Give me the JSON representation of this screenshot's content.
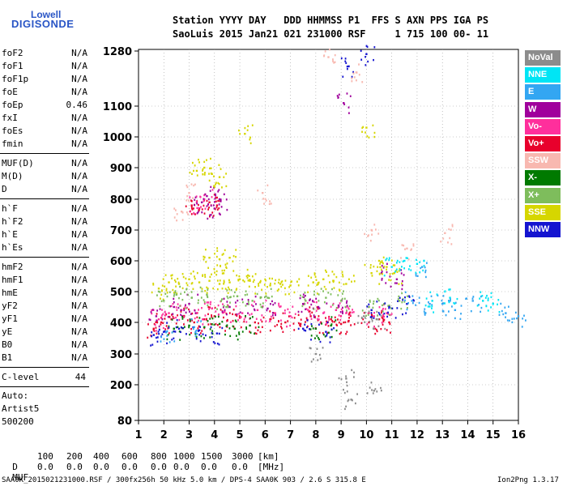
{
  "logo": {
    "line1": "Lowell",
    "line2": "DIGISONDE"
  },
  "header": {
    "row1": "Station YYYY DAY   DDD HHMMSS P1  FFS S AXN PPS IGA PS",
    "row2": "SaoLuis 2015 Jan21 021 231000 RSF     1 715 100 00- 11"
  },
  "params": {
    "group1": [
      {
        "k": "foF2",
        "v": "N/A"
      },
      {
        "k": "foF1",
        "v": "N/A"
      },
      {
        "k": "foF1p",
        "v": "N/A"
      },
      {
        "k": "foE",
        "v": "N/A"
      },
      {
        "k": "foEp",
        "v": "0.46"
      },
      {
        "k": "fxI",
        "v": "N/A"
      },
      {
        "k": "foEs",
        "v": "N/A"
      },
      {
        "k": "fmin",
        "v": "N/A"
      }
    ],
    "group2": [
      {
        "k": "MUF(D)",
        "v": "N/A"
      },
      {
        "k": "M(D)",
        "v": "N/A"
      },
      {
        "k": "D",
        "v": "N/A"
      }
    ],
    "group3": [
      {
        "k": "h`F",
        "v": "N/A"
      },
      {
        "k": "h`F2",
        "v": "N/A"
      },
      {
        "k": "h`E",
        "v": "N/A"
      },
      {
        "k": "h`Es",
        "v": "N/A"
      }
    ],
    "group4": [
      {
        "k": "hmF2",
        "v": "N/A"
      },
      {
        "k": "hmF1",
        "v": "N/A"
      },
      {
        "k": "hmE",
        "v": "N/A"
      },
      {
        "k": "yF2",
        "v": "N/A"
      },
      {
        "k": "yF1",
        "v": "N/A"
      },
      {
        "k": "yE",
        "v": "N/A"
      },
      {
        "k": "B0",
        "v": "N/A"
      },
      {
        "k": "B1",
        "v": "N/A"
      }
    ],
    "clevel": {
      "k": "C-level",
      "v": "44"
    },
    "auto": [
      "Auto:",
      "Artist5",
      "500200"
    ]
  },
  "legend": [
    {
      "label": "NoVal",
      "color": "#8c8c8c"
    },
    {
      "label": "NNE",
      "color": "#00e5f5"
    },
    {
      "label": "E",
      "color": "#33a6f2"
    },
    {
      "label": "W",
      "color": "#a0009c"
    },
    {
      "label": "Vo-",
      "color": "#ff2f9c"
    },
    {
      "label": "Vo+",
      "color": "#e8002c"
    },
    {
      "label": "SSW",
      "color": "#f8b8b0"
    },
    {
      "label": "X-",
      "color": "#007a00"
    },
    {
      "label": "X+",
      "color": "#7ebd5c"
    },
    {
      "label": "SSE",
      "color": "#d6d600"
    },
    {
      "label": "NNW",
      "color": "#1414d0"
    }
  ],
  "chart_data": {
    "type": "scatter",
    "xlabel": "",
    "ylabel": "",
    "x_ticks": [
      1,
      2,
      3,
      4,
      5,
      6,
      7,
      8,
      9,
      10,
      11,
      12,
      13,
      14,
      15,
      16
    ],
    "y_ticks": [
      80,
      200,
      300,
      400,
      500,
      600,
      700,
      800,
      900,
      1000,
      1100,
      1280
    ],
    "xlim": [
      1,
      16
    ],
    "ylim": [
      80,
      1280
    ],
    "series": [
      {
        "name": "Vo+",
        "color": "#e8002c",
        "points": [
          [
            1.6,
            380
          ],
          [
            1.9,
            400
          ],
          [
            2.3,
            410
          ],
          [
            2.8,
            420
          ],
          [
            3.2,
            400
          ],
          [
            3.6,
            410
          ],
          [
            4.0,
            420
          ],
          [
            4.5,
            405
          ],
          [
            5.0,
            415
          ],
          [
            5.6,
            400
          ],
          [
            6.2,
            410
          ],
          [
            6.8,
            400
          ],
          [
            7.4,
            395
          ],
          [
            7.8,
            420
          ],
          [
            8.2,
            400
          ],
          [
            8.6,
            410
          ],
          [
            9.0,
            395
          ],
          [
            9.3,
            405
          ],
          [
            10.1,
            400
          ],
          [
            10.5,
            410
          ],
          [
            10.9,
            400
          ],
          [
            3.1,
            780
          ],
          [
            3.4,
            770
          ],
          [
            3.8,
            790
          ],
          [
            4.1,
            780
          ]
        ]
      },
      {
        "name": "Vo-",
        "color": "#ff2f9c",
        "points": [
          [
            1.8,
            410
          ],
          [
            2.2,
            430
          ],
          [
            2.7,
            440
          ],
          [
            3.3,
            430
          ],
          [
            3.9,
            445
          ],
          [
            4.4,
            435
          ],
          [
            5.1,
            430
          ],
          [
            5.7,
            440
          ],
          [
            6.4,
            430
          ],
          [
            7.0,
            420
          ],
          [
            7.7,
            440
          ],
          [
            8.3,
            430
          ],
          [
            8.8,
            440
          ],
          [
            9.2,
            430
          ],
          [
            10.3,
            420
          ],
          [
            10.8,
            430
          ],
          [
            3.3,
            790
          ],
          [
            3.6,
            800
          ]
        ]
      },
      {
        "name": "W",
        "color": "#a0009c",
        "points": [
          [
            1.7,
            420
          ],
          [
            2.4,
            450
          ],
          [
            3.0,
            460
          ],
          [
            3.5,
            790
          ],
          [
            3.7,
            810
          ],
          [
            4.0,
            770
          ],
          [
            4.2,
            800
          ],
          [
            4.6,
            450
          ],
          [
            5.3,
            460
          ],
          [
            6.1,
            445
          ],
          [
            7.5,
            460
          ],
          [
            8.1,
            450
          ],
          [
            8.9,
            455
          ],
          [
            9.1,
            1110
          ],
          [
            10.6,
            560
          ],
          [
            11.2,
            540
          ]
        ]
      },
      {
        "name": "SSE",
        "color": "#d6d600",
        "points": [
          [
            1.8,
            510
          ],
          [
            2.2,
            530
          ],
          [
            2.6,
            525
          ],
          [
            3.0,
            540
          ],
          [
            3.4,
            530
          ],
          [
            3.8,
            535
          ],
          [
            4.2,
            525
          ],
          [
            4.6,
            530
          ],
          [
            5.0,
            540
          ],
          [
            5.4,
            535
          ],
          [
            5.8,
            530
          ],
          [
            6.2,
            520
          ],
          [
            6.6,
            525
          ],
          [
            7.0,
            520
          ],
          [
            7.9,
            530
          ],
          [
            8.3,
            540
          ],
          [
            8.7,
            535
          ],
          [
            9.2,
            525
          ],
          [
            10.2,
            560
          ],
          [
            10.5,
            600
          ],
          [
            10.8,
            580
          ],
          [
            11.1,
            560
          ],
          [
            3.3,
            890
          ],
          [
            3.6,
            900
          ],
          [
            3.9,
            880
          ],
          [
            4.2,
            870
          ],
          [
            3.8,
            610
          ],
          [
            4.2,
            605
          ],
          [
            4.6,
            610
          ],
          [
            5.2,
            1010
          ],
          [
            10.0,
            1030
          ]
        ]
      },
      {
        "name": "X+",
        "color": "#7ebd5c",
        "points": [
          [
            2.0,
            470
          ],
          [
            2.5,
            490
          ],
          [
            3.1,
            480
          ],
          [
            3.7,
            490
          ],
          [
            4.3,
            475
          ],
          [
            4.9,
            485
          ],
          [
            5.5,
            470
          ],
          [
            6.1,
            480
          ],
          [
            7.6,
            470
          ],
          [
            8.4,
            480
          ],
          [
            9.0,
            470
          ],
          [
            10.1,
            450
          ],
          [
            10.7,
            460
          ],
          [
            11.3,
            470
          ]
        ]
      },
      {
        "name": "X-",
        "color": "#007a00",
        "points": [
          [
            2.4,
            380
          ],
          [
            3.0,
            390
          ],
          [
            3.6,
            385
          ],
          [
            4.2,
            395
          ],
          [
            4.8,
            380
          ],
          [
            5.4,
            390
          ],
          [
            8.0,
            380
          ],
          [
            8.6,
            390
          ]
        ]
      },
      {
        "name": "NNW",
        "color": "#1414d0",
        "points": [
          [
            1.6,
            360
          ],
          [
            2.0,
            370
          ],
          [
            2.6,
            380
          ],
          [
            3.4,
            375
          ],
          [
            4.1,
            365
          ],
          [
            7.5,
            380
          ],
          [
            8.4,
            370
          ],
          [
            9.3,
            1230
          ],
          [
            10.0,
            1270
          ],
          [
            10.2,
            440
          ],
          [
            10.9,
            450
          ],
          [
            11.6,
            460
          ]
        ]
      },
      {
        "name": "E",
        "color": "#33a6f2",
        "points": [
          [
            2.1,
            370
          ],
          [
            3.2,
            385
          ],
          [
            11.8,
            470
          ],
          [
            12.2,
            580
          ],
          [
            12.5,
            460
          ],
          [
            13.0,
            460
          ],
          [
            13.5,
            440
          ],
          [
            14.2,
            470
          ],
          [
            15.5,
            430
          ],
          [
            16.0,
            420
          ]
        ]
      },
      {
        "name": "NNE",
        "color": "#00e5f5",
        "points": [
          [
            11.0,
            580
          ],
          [
            11.5,
            600
          ],
          [
            12.0,
            590
          ],
          [
            12.6,
            470
          ],
          [
            13.3,
            480
          ],
          [
            14.6,
            470
          ],
          [
            15.0,
            460
          ]
        ]
      },
      {
        "name": "SSW",
        "color": "#f8b8b0",
        "points": [
          [
            8.5,
            1260
          ],
          [
            9.6,
            1210
          ],
          [
            10.2,
            700
          ],
          [
            11.6,
            640
          ],
          [
            13.1,
            690
          ],
          [
            5.9,
            820
          ],
          [
            2.7,
            760
          ],
          [
            3.0,
            820
          ]
        ]
      },
      {
        "name": "NoVal",
        "color": "#8c8c8c",
        "points": [
          [
            9.9,
            420
          ],
          [
            10.4,
            410
          ],
          [
            8.0,
            300
          ],
          [
            9.2,
            220
          ],
          [
            10.3,
            180
          ],
          [
            9.4,
            150
          ]
        ]
      }
    ],
    "annotation_rows": [
      {
        "label": "D",
        "values": [
          "100",
          "200",
          "400",
          "600",
          "800",
          "1000",
          "1500",
          "3000",
          "[km]"
        ]
      },
      {
        "label": "MUF",
        "values": [
          "0.0",
          "0.0",
          "0.0",
          "0.0",
          "0.0",
          "0.0",
          "0.0",
          "0.0",
          "[MHz]"
        ]
      }
    ]
  },
  "footer": {
    "left": "SAA0K_2015021231000.RSF / 300fx256h 50 kHz 5.0 km / DPS-4 SAA0K 903 / 2.6 S 315.8 E",
    "right": "Ion2Png 1.3.17"
  }
}
